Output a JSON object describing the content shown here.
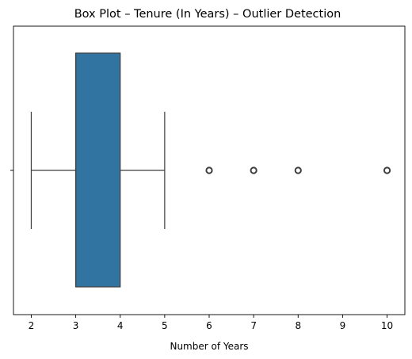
{
  "chart_data": {
    "type": "box",
    "title": "Box Plot – Tenure (In Years) – Outlier Detection",
    "xlabel": "Number of Years",
    "ylabel": "",
    "orientation": "horizontal",
    "xlim": [
      1.6,
      10.4
    ],
    "xticks": [
      2,
      3,
      4,
      5,
      6,
      7,
      8,
      9,
      10
    ],
    "xtick_labels": [
      "2",
      "3",
      "4",
      "5",
      "6",
      "7",
      "8",
      "9",
      "10"
    ],
    "box": {
      "whisker_low": 2,
      "q1": 3,
      "median": 3,
      "q3": 4,
      "whisker_high": 5
    },
    "outliers": [
      6,
      7,
      8,
      10
    ],
    "box_color": "#3274a1",
    "line_color": "#3f3f3f",
    "grid": false
  }
}
